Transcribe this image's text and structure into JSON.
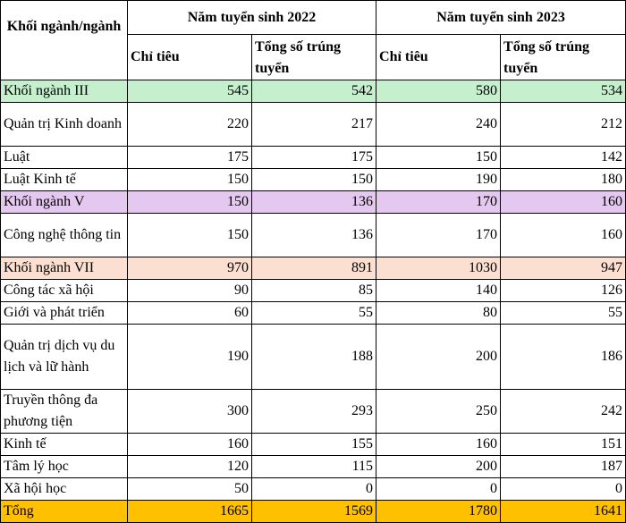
{
  "header": {
    "group_label": "Khối ngành/ngành",
    "year_2022": "Năm tuyển sinh 2022",
    "year_2023": "Năm tuyển sinh 2023",
    "quota": "Chỉ tiêu",
    "admitted": "Tổng số trúng tuyển"
  },
  "colors": {
    "group_iii": "#c6efce",
    "group_v": "#e4c8ef",
    "group_vii": "#fbe0d2",
    "total": "#ffc000"
  },
  "rows": [
    {
      "name": "Khối ngành III",
      "q2022": "545",
      "a2022": "542",
      "q2023": "580",
      "a2023": "534",
      "hl": "group_iii",
      "h": "r1"
    },
    {
      "name": "Quản trị Kinh doanh",
      "q2022": "220",
      "a2022": "217",
      "q2023": "240",
      "a2023": "212",
      "h": "r2"
    },
    {
      "name": "Luật",
      "q2022": "175",
      "a2022": "175",
      "q2023": "150",
      "a2023": "142",
      "h": "r1"
    },
    {
      "name": "Luật Kinh tế",
      "q2022": "150",
      "a2022": "150",
      "q2023": "190",
      "a2023": "180",
      "h": "r1"
    },
    {
      "name": "Khối ngành V",
      "q2022": "150",
      "a2022": "136",
      "q2023": "170",
      "a2023": "160",
      "hl": "group_v",
      "h": "r1"
    },
    {
      "name": "Công nghệ thông tin",
      "q2022": "150",
      "a2022": "136",
      "q2023": "170",
      "a2023": "160",
      "h": "r2"
    },
    {
      "name": "Khối ngành VII",
      "q2022": "970",
      "a2022": "891",
      "q2023": "1030",
      "a2023": "947",
      "hl": "group_vii",
      "h": "r1"
    },
    {
      "name": "Công tác xã hội",
      "q2022": "90",
      "a2022": "85",
      "q2023": "140",
      "a2023": "126",
      "h": "r1"
    },
    {
      "name": "Giới và phát triển",
      "q2022": "60",
      "a2022": "55",
      "q2023": "80",
      "a2023": "55",
      "h": "r1"
    },
    {
      "name": "Quản trị dịch vụ du lịch và lữ hành",
      "q2022": "190",
      "a2022": "188",
      "q2023": "200",
      "a2023": "186",
      "h": "r3"
    },
    {
      "name": "Truyền thông đa phương tiện",
      "q2022": "300",
      "a2022": "293",
      "q2023": "250",
      "a2023": "242",
      "h": "r2"
    },
    {
      "name": "Kinh tế",
      "q2022": "160",
      "a2022": "155",
      "q2023": "160",
      "a2023": "151",
      "h": "r1"
    },
    {
      "name": "Tâm lý học",
      "q2022": "120",
      "a2022": "115",
      "q2023": "200",
      "a2023": "187",
      "h": "r1"
    },
    {
      "name": "Xã hội học",
      "q2022": "50",
      "a2022": "0",
      "q2023": "0",
      "a2023": "0",
      "h": "r1"
    },
    {
      "name": "Tổng",
      "q2022": "1665",
      "a2022": "1569",
      "q2023": "1780",
      "a2023": "1641",
      "hl": "total",
      "h": "total"
    }
  ]
}
